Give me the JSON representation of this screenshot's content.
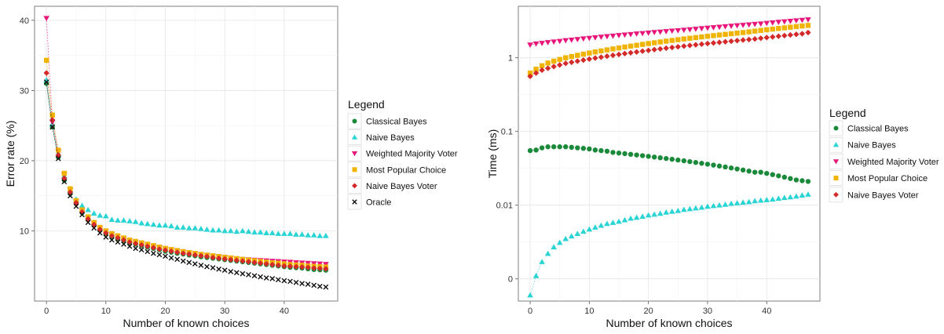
{
  "chart_data": [
    {
      "type": "scatter",
      "xlabel": "Number of known choices",
      "ylabel": "Error rate (%)",
      "xlim": [
        -2,
        49
      ],
      "ylim": [
        0,
        42
      ],
      "x_ticks": [
        0,
        10,
        20,
        30,
        40
      ],
      "x_tick_labels": [
        "0",
        "10",
        "20",
        "30",
        "40"
      ],
      "y_ticks": [
        10,
        20,
        30,
        40
      ],
      "y_tick_labels": [
        "10",
        "20",
        "30",
        "40"
      ],
      "grid": true,
      "legend": {
        "title": "Legend",
        "position": "right"
      },
      "x": [
        0,
        1,
        2,
        3,
        4,
        5,
        6,
        7,
        8,
        9,
        10,
        11,
        12,
        13,
        14,
        15,
        16,
        17,
        18,
        19,
        20,
        21,
        22,
        23,
        24,
        25,
        26,
        27,
        28,
        29,
        30,
        31,
        32,
        33,
        34,
        35,
        36,
        37,
        38,
        39,
        40,
        41,
        42,
        43,
        44,
        45,
        46,
        47
      ],
      "series": [
        {
          "name": "Classical Bayes",
          "color": "#1a8a3a",
          "marker": "circle",
          "values": [
            31.0,
            24.8,
            20.5,
            17.2,
            15.3,
            13.9,
            12.6,
            11.6,
            10.8,
            10.1,
            9.6,
            9.2,
            8.9,
            8.6,
            8.3,
            8.1,
            7.9,
            7.7,
            7.5,
            7.3,
            7.1,
            6.95,
            6.8,
            6.7,
            6.55,
            6.45,
            6.3,
            6.2,
            6.1,
            6.0,
            5.9,
            5.8,
            5.7,
            5.6,
            5.5,
            5.4,
            5.3,
            5.2,
            5.1,
            5.0,
            4.9,
            4.8,
            4.75,
            4.7,
            4.6,
            4.5,
            4.45,
            4.4
          ]
        },
        {
          "name": "Naive Bayes",
          "color": "#2ad4d4",
          "marker": "triangle-up",
          "values": [
            31.5,
            25.2,
            21.0,
            17.8,
            15.8,
            14.5,
            13.6,
            13.0,
            12.5,
            12.2,
            12.1,
            11.6,
            11.5,
            11.5,
            11.4,
            11.3,
            11.1,
            11.0,
            10.9,
            10.8,
            10.8,
            10.7,
            10.5,
            10.5,
            10.4,
            10.4,
            10.3,
            10.2,
            10.1,
            10.1,
            10.0,
            10.0,
            9.9,
            10.0,
            9.9,
            9.8,
            9.8,
            9.7,
            9.7,
            9.6,
            9.6,
            9.6,
            9.5,
            9.5,
            9.4,
            9.4,
            9.3,
            9.3
          ]
        },
        {
          "name": "Weighted Majority Voter",
          "color": "#e8167a",
          "marker": "triangle-down",
          "values": [
            40.3,
            25.5,
            21.3,
            18.0,
            15.8,
            14.2,
            12.9,
            11.9,
            11.1,
            10.4,
            9.9,
            9.5,
            9.2,
            8.9,
            8.6,
            8.4,
            8.2,
            8.0,
            7.8,
            7.6,
            7.45,
            7.3,
            7.15,
            7.0,
            6.9,
            6.75,
            6.65,
            6.5,
            6.4,
            6.3,
            6.2,
            6.1,
            6.0,
            5.95,
            5.9,
            5.85,
            5.8,
            5.75,
            5.7,
            5.65,
            5.6,
            5.55,
            5.5,
            5.45,
            5.4,
            5.35,
            5.3,
            5.25
          ]
        },
        {
          "name": "Most Popular Choice",
          "color": "#f0b400",
          "marker": "square",
          "values": [
            34.3,
            26.5,
            21.5,
            18.2,
            16.0,
            14.3,
            13.0,
            12.0,
            11.2,
            10.5,
            10.0,
            9.6,
            9.3,
            9.0,
            8.7,
            8.5,
            8.3,
            8.1,
            7.9,
            7.7,
            7.5,
            7.35,
            7.2,
            7.05,
            6.9,
            6.8,
            6.65,
            6.55,
            6.45,
            6.35,
            6.25,
            6.15,
            6.05,
            5.95,
            5.85,
            5.75,
            5.65,
            5.55,
            5.45,
            5.4,
            5.3,
            5.2,
            5.15,
            5.1,
            5.0,
            4.95,
            4.9,
            4.85
          ]
        },
        {
          "name": "Naive Bayes Voter",
          "color": "#d42a2a",
          "marker": "diamond",
          "values": [
            32.5,
            25.8,
            20.8,
            17.5,
            15.5,
            14.0,
            12.7,
            11.7,
            10.9,
            10.2,
            9.7,
            9.3,
            9.0,
            8.7,
            8.4,
            8.2,
            8.0,
            7.8,
            7.6,
            7.4,
            7.25,
            7.1,
            6.95,
            6.8,
            6.7,
            6.55,
            6.45,
            6.35,
            6.2,
            6.1,
            6.0,
            5.9,
            5.8,
            5.7,
            5.6,
            5.5,
            5.4,
            5.3,
            5.2,
            5.1,
            5.0,
            4.95,
            4.9,
            4.85,
            4.8,
            4.7,
            4.65,
            4.6
          ]
        },
        {
          "name": "Oracle",
          "color": "#111111",
          "marker": "cross",
          "values": [
            31.2,
            24.8,
            20.3,
            17.0,
            15.0,
            13.5,
            12.3,
            11.2,
            10.4,
            9.7,
            9.1,
            8.7,
            8.4,
            8.1,
            7.8,
            7.5,
            7.3,
            7.05,
            6.8,
            6.6,
            6.4,
            6.15,
            5.95,
            5.7,
            5.5,
            5.3,
            5.1,
            4.9,
            4.75,
            4.55,
            4.4,
            4.2,
            4.05,
            3.9,
            3.75,
            3.6,
            3.45,
            3.3,
            3.2,
            3.05,
            2.9,
            2.8,
            2.65,
            2.5,
            2.4,
            2.25,
            2.1,
            2.0
          ]
        }
      ]
    },
    {
      "type": "scatter",
      "xlabel": "Number of known choices",
      "ylabel": "Time (ms)",
      "xlim": [
        -2,
        49
      ],
      "ylim": [
        0.0005,
        5
      ],
      "yscale": "log",
      "x_ticks": [
        0,
        10,
        20,
        30,
        40
      ],
      "x_tick_labels": [
        "0",
        "10",
        "20",
        "30",
        "40"
      ],
      "y_ticks": [
        0.001,
        0.01,
        0.1,
        1
      ],
      "y_tick_labels": [
        "0",
        "0.01",
        "0.1",
        "1"
      ],
      "grid": true,
      "legend": {
        "title": "Legend",
        "position": "right"
      },
      "x": [
        0,
        1,
        2,
        3,
        4,
        5,
        6,
        7,
        8,
        9,
        10,
        11,
        12,
        13,
        14,
        15,
        16,
        17,
        18,
        19,
        20,
        21,
        22,
        23,
        24,
        25,
        26,
        27,
        28,
        29,
        30,
        31,
        32,
        33,
        34,
        35,
        36,
        37,
        38,
        39,
        40,
        41,
        42,
        43,
        44,
        45,
        46,
        47
      ],
      "series": [
        {
          "name": "Classical Bayes",
          "color": "#1a8a3a",
          "marker": "circle",
          "values": [
            0.055,
            0.056,
            0.06,
            0.062,
            0.062,
            0.062,
            0.062,
            0.061,
            0.06,
            0.059,
            0.058,
            0.056,
            0.055,
            0.054,
            0.052,
            0.051,
            0.05,
            0.049,
            0.048,
            0.047,
            0.046,
            0.045,
            0.044,
            0.043,
            0.042,
            0.041,
            0.04,
            0.039,
            0.038,
            0.037,
            0.036,
            0.035,
            0.034,
            0.033,
            0.032,
            0.031,
            0.03,
            0.029,
            0.028,
            0.028,
            0.027,
            0.026,
            0.025,
            0.024,
            0.023,
            0.022,
            0.0215,
            0.021
          ]
        },
        {
          "name": "Naive Bayes",
          "color": "#2ad4d4",
          "marker": "triangle-up",
          "values": [
            0.0006,
            0.0011,
            0.0017,
            0.0022,
            0.0027,
            0.0031,
            0.0035,
            0.0038,
            0.0041,
            0.0044,
            0.0047,
            0.005,
            0.0053,
            0.0056,
            0.0058,
            0.006,
            0.0063,
            0.0066,
            0.0068,
            0.007,
            0.0073,
            0.0075,
            0.0077,
            0.008,
            0.0082,
            0.0084,
            0.0087,
            0.0089,
            0.0091,
            0.0093,
            0.0096,
            0.0098,
            0.01,
            0.0102,
            0.0105,
            0.0107,
            0.0109,
            0.0111,
            0.0114,
            0.0116,
            0.0118,
            0.012,
            0.0123,
            0.0126,
            0.0129,
            0.0132,
            0.0136,
            0.014
          ]
        },
        {
          "name": "Weighted Majority Voter",
          "color": "#e8167a",
          "marker": "triangle-down",
          "values": [
            1.5,
            1.55,
            1.58,
            1.62,
            1.65,
            1.68,
            1.72,
            1.75,
            1.78,
            1.82,
            1.85,
            1.88,
            1.92,
            1.95,
            1.98,
            2.02,
            2.05,
            2.08,
            2.12,
            2.15,
            2.18,
            2.22,
            2.25,
            2.28,
            2.32,
            2.35,
            2.38,
            2.42,
            2.46,
            2.5,
            2.54,
            2.58,
            2.62,
            2.66,
            2.7,
            2.74,
            2.78,
            2.82,
            2.86,
            2.9,
            2.95,
            3.0,
            3.05,
            3.1,
            3.15,
            3.2,
            3.25,
            3.3
          ]
        },
        {
          "name": "Most Popular Choice",
          "color": "#f0b400",
          "marker": "square",
          "values": [
            0.62,
            0.7,
            0.78,
            0.85,
            0.9,
            0.95,
            1.0,
            1.04,
            1.08,
            1.12,
            1.16,
            1.2,
            1.24,
            1.28,
            1.32,
            1.36,
            1.4,
            1.44,
            1.48,
            1.52,
            1.56,
            1.6,
            1.64,
            1.68,
            1.72,
            1.76,
            1.8,
            1.84,
            1.88,
            1.92,
            1.96,
            2.0,
            2.04,
            2.08,
            2.12,
            2.16,
            2.2,
            2.25,
            2.3,
            2.35,
            2.4,
            2.45,
            2.5,
            2.55,
            2.6,
            2.65,
            2.7,
            2.75
          ]
        },
        {
          "name": "Naive Bayes Voter",
          "color": "#d42a2a",
          "marker": "diamond",
          "values": [
            0.56,
            0.62,
            0.68,
            0.72,
            0.76,
            0.8,
            0.84,
            0.87,
            0.9,
            0.93,
            0.96,
            0.99,
            1.02,
            1.05,
            1.08,
            1.11,
            1.14,
            1.17,
            1.2,
            1.23,
            1.26,
            1.29,
            1.32,
            1.35,
            1.38,
            1.41,
            1.44,
            1.47,
            1.5,
            1.53,
            1.56,
            1.59,
            1.62,
            1.65,
            1.68,
            1.71,
            1.74,
            1.77,
            1.8,
            1.84,
            1.88,
            1.92,
            1.96,
            2.0,
            2.04,
            2.08,
            2.12,
            2.2
          ]
        }
      ]
    }
  ]
}
